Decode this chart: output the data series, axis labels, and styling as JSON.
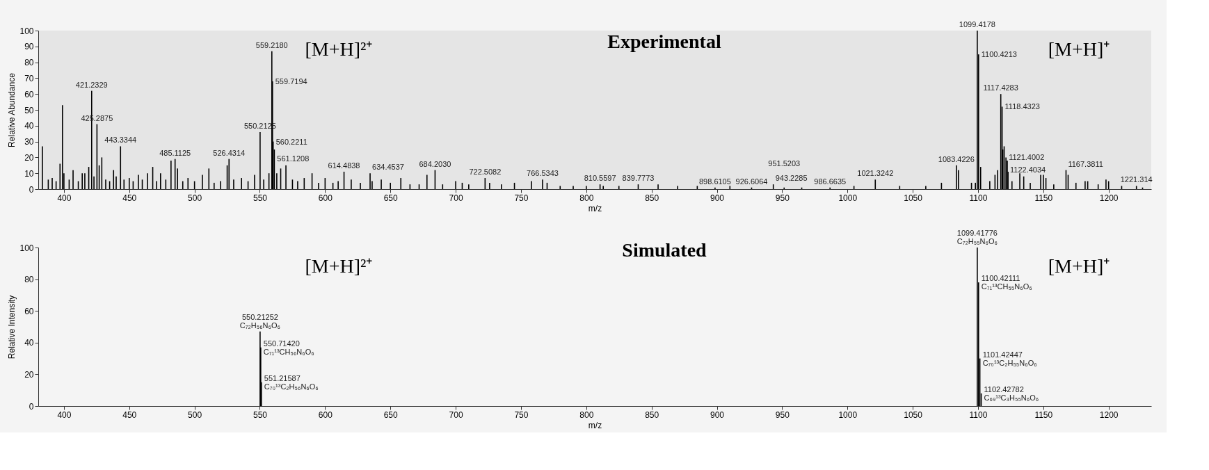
{
  "chart_data": [
    {
      "type": "bar",
      "title": "Experimental",
      "xlabel": "m/z",
      "ylabel": "Relative Abundance",
      "xlim": [
        383,
        1230
      ],
      "xticks": [
        400,
        450,
        500,
        550,
        600,
        650,
        700,
        750,
        800,
        850,
        900,
        950,
        1000,
        1050,
        1100,
        1150,
        1200
      ],
      "ylim": [
        0,
        100
      ],
      "yticks": [
        0,
        10,
        20,
        30,
        40,
        50,
        60,
        70,
        80,
        90,
        100
      ],
      "grid": false,
      "x": [
        383.5,
        388,
        391,
        394,
        397,
        398.9,
        400,
        404,
        407,
        411,
        414,
        416,
        419,
        421.2329,
        423,
        425.2875,
        427,
        429,
        432,
        435,
        438,
        440,
        443.3344,
        446,
        450,
        453,
        457,
        460,
        464,
        468,
        471,
        474,
        478,
        482,
        485.1125,
        487,
        491,
        495,
        500,
        506,
        511,
        515,
        520,
        525,
        526.4314,
        530,
        536,
        541,
        546,
        550.2125,
        553,
        557,
        559.218,
        559.7194,
        560.2211,
        561.1208,
        563,
        566,
        570,
        575,
        579,
        584,
        590,
        595,
        600,
        606,
        610,
        614.4838,
        620,
        627,
        634.4537,
        636,
        643,
        650,
        658,
        665,
        672,
        678,
        684.203,
        690,
        700,
        705,
        710,
        722.5082,
        726,
        735,
        745,
        758,
        766.5343,
        770,
        780,
        790,
        800,
        810.5597,
        813,
        825,
        839.7773,
        855,
        870,
        885,
        898.6105,
        910,
        926.6064,
        943.2285,
        951.5203,
        965,
        986.6635,
        1005,
        1021.3242,
        1040,
        1060,
        1072,
        1083.4226,
        1085,
        1095,
        1098,
        1099.4178,
        1100.4213,
        1102,
        1109,
        1113,
        1115,
        1117.4283,
        1118.4323,
        1119,
        1120,
        1121.4002,
        1122.4034,
        1123,
        1126,
        1132,
        1135,
        1140,
        1148,
        1150,
        1152,
        1158,
        1167.3811,
        1169,
        1175,
        1182,
        1184,
        1192,
        1198,
        1200,
        1210,
        1221.314,
        1226
      ],
      "series": [
        {
          "color": "#000000",
          "values": [
            27,
            6,
            7,
            5,
            16,
            53,
            10,
            6,
            12,
            5,
            10,
            10,
            14,
            62,
            8,
            41,
            15,
            20,
            6,
            5,
            12,
            8,
            27,
            6,
            7,
            5,
            9,
            6,
            10,
            14,
            5,
            10,
            6,
            18,
            19,
            13,
            5,
            7,
            5,
            9,
            13,
            4,
            5,
            15,
            19,
            6,
            7,
            5,
            9,
            36,
            6,
            10,
            87,
            68,
            30,
            25,
            10,
            13,
            15,
            6,
            5,
            7,
            10,
            4,
            7,
            4,
            5,
            11,
            6,
            4,
            10,
            5,
            6,
            4,
            7,
            3,
            3,
            9,
            12,
            3,
            5,
            4,
            3,
            7,
            4,
            3,
            4,
            5,
            6,
            4,
            2,
            2,
            2,
            3,
            2,
            2,
            3,
            3,
            2,
            2,
            1,
            2,
            1,
            3,
            1,
            1,
            1,
            2,
            6,
            2,
            2,
            4,
            15,
            12,
            4,
            4,
            100,
            85,
            14,
            5,
            9,
            12,
            60,
            52,
            25,
            27,
            20,
            18,
            11,
            5,
            10,
            8,
            4,
            9,
            9,
            7,
            3,
            12,
            9,
            4,
            5,
            5,
            3,
            6,
            5,
            2,
            2,
            1
          ]
        }
      ],
      "annotations": [
        "[M+H]²⁺",
        "[M+H]⁺",
        {
          "text": "421.2329",
          "x": 421.2329,
          "y": 62
        },
        {
          "text": "425.2875",
          "x": 425.2875,
          "y": 41
        },
        {
          "text": "443.3344",
          "x": 443.3344,
          "y": 27
        },
        {
          "text": "485.1125",
          "x": 485.1125,
          "y": 19
        },
        {
          "text": "526.4314",
          "x": 526.4314,
          "y": 19
        },
        {
          "text": "550.2125",
          "x": 550.2125,
          "y": 36
        },
        {
          "text": "559.2180",
          "x": 559.218,
          "y": 87
        },
        {
          "text": "559.7194",
          "x": 559.7194,
          "y": 68
        },
        {
          "text": "560.2211",
          "x": 560.2211,
          "y": 30
        },
        {
          "text": "561.1208",
          "x": 561.1208,
          "y": 25
        },
        {
          "text": "614.4838",
          "x": 614.4838,
          "y": 11
        },
        {
          "text": "634.4537",
          "x": 634.4537,
          "y": 10
        },
        {
          "text": "684.2030",
          "x": 684.203,
          "y": 12
        },
        {
          "text": "722.5082",
          "x": 722.5082,
          "y": 7
        },
        {
          "text": "766.5343",
          "x": 766.5343,
          "y": 6
        },
        {
          "text": "810.5597",
          "x": 810.5597,
          "y": 3
        },
        {
          "text": "839.7773",
          "x": 839.7773,
          "y": 3
        },
        {
          "text": "898.6105",
          "x": 898.6105,
          "y": 1
        },
        {
          "text": "926.6064",
          "x": 926.6064,
          "y": 1
        },
        {
          "text": "943.2285",
          "x": 943.2285,
          "y": 3
        },
        {
          "text": "951.5203",
          "x": 951.5203,
          "y": 1
        },
        {
          "text": "986.6635",
          "x": 986.6635,
          "y": 1
        },
        {
          "text": "1021.3242",
          "x": 1021.3242,
          "y": 6
        },
        {
          "text": "1083.4226",
          "x": 1083.4226,
          "y": 15
        },
        {
          "text": "1099.4178",
          "x": 1099.4178,
          "y": 100
        },
        {
          "text": "1100.4213",
          "x": 1100.4213,
          "y": 85
        },
        {
          "text": "1117.4283",
          "x": 1117.4283,
          "y": 60
        },
        {
          "text": "1118.4323",
          "x": 1118.4323,
          "y": 52
        },
        {
          "text": "1121.4002",
          "x": 1121.4002,
          "y": 20
        },
        {
          "text": "1122.4034",
          "x": 1122.4034,
          "y": 18
        },
        {
          "text": "1167.3811",
          "x": 1167.3811,
          "y": 12
        },
        {
          "text": "1221.314",
          "x": 1221.314,
          "y": 2
        }
      ]
    },
    {
      "type": "bar",
      "title": "Simulated",
      "xlabel": "m/z",
      "ylabel": "Relative Intensity",
      "xlim": [
        383,
        1230
      ],
      "xticks": [
        400,
        450,
        500,
        550,
        600,
        650,
        700,
        750,
        800,
        850,
        900,
        950,
        1000,
        1050,
        1100,
        1150,
        1200
      ],
      "ylim": [
        0,
        100
      ],
      "yticks": [
        0,
        20,
        40,
        60,
        80,
        100
      ],
      "grid": false,
      "x": [
        550.21252,
        550.7142,
        551.21587,
        1099.41776,
        1100.42111,
        1101.42447,
        1102.42782
      ],
      "series": [
        {
          "color": "#000000",
          "values": [
            47,
            37,
            15,
            100,
            78,
            30,
            8
          ]
        }
      ],
      "annotations": [
        "[M+H]²⁺",
        "[M+H]⁺",
        {
          "text": "550.21252\nC₇₂H₅₆N₆O₆",
          "x": 550.21252,
          "y": 47
        },
        {
          "text": "550.71420\nC₇₁¹³CH₅₆N₆O₆",
          "x": 550.7142,
          "y": 37
        },
        {
          "text": "551.21587\nC₇₀¹³C₂H₅₆N₆O₆",
          "x": 551.21587,
          "y": 15
        },
        {
          "text": "1099.41776\nC₇₂H₅₅N₆O₆",
          "x": 1099.41776,
          "y": 100
        },
        {
          "text": "1100.42111\nC₇₁¹³CH₅₅N₆O₆",
          "x": 1100.42111,
          "y": 78
        },
        {
          "text": "1101.42447\nC₇₀¹³C₂H₅₅N₆O₆",
          "x": 1101.42447,
          "y": 30
        },
        {
          "text": "1102.42782\nC₆₉¹³C₃H₅₅N₆O₆",
          "x": 1102.42782,
          "y": 8
        }
      ]
    }
  ]
}
